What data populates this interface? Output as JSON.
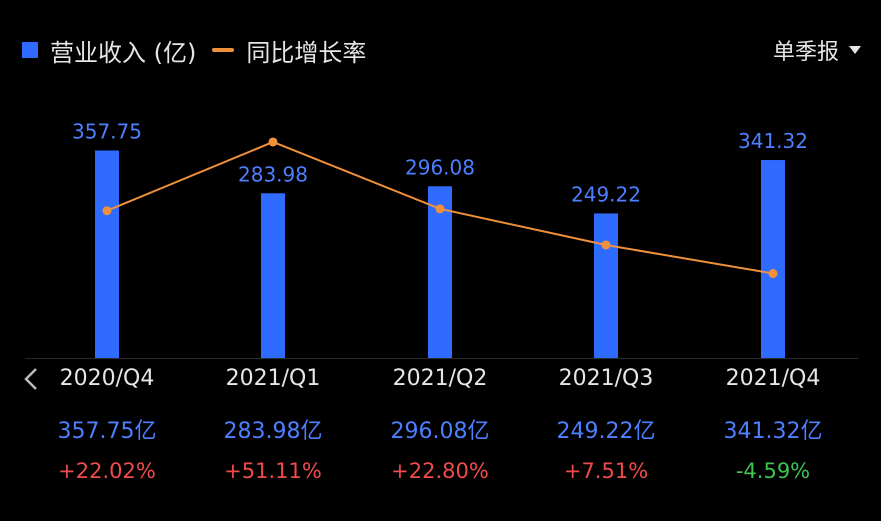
{
  "legend": {
    "bar_label": "营业收入 (亿)",
    "line_label": "同比增长率"
  },
  "period_select": {
    "label": "单季报"
  },
  "colors": {
    "bar": "#2f6bff",
    "line": "#f0903a",
    "positive": "#f04b4b",
    "negative": "#3fc24f",
    "value_text": "#4d7fff"
  },
  "table": {
    "revenue": [
      "357.75亿",
      "283.98亿",
      "296.08亿",
      "249.22亿",
      "341.32亿"
    ],
    "growth": [
      "+22.02%",
      "+51.11%",
      "+22.80%",
      "+7.51%",
      "-4.59%"
    ]
  },
  "chart_data": {
    "type": "bar",
    "categories": [
      "2020/Q4",
      "2021/Q1",
      "2021/Q2",
      "2021/Q3",
      "2021/Q4"
    ],
    "series": [
      {
        "name": "营业收入 (亿)",
        "type": "bar",
        "values": [
          357.75,
          283.98,
          296.08,
          249.22,
          341.32
        ]
      },
      {
        "name": "同比增长率",
        "type": "line",
        "values": [
          22.02,
          51.11,
          22.8,
          7.51,
          -4.59
        ]
      }
    ],
    "bar_labels": [
      "357.75",
      "283.98",
      "296.08",
      "249.22",
      "341.32"
    ],
    "grid": false,
    "legend_position": "top-left"
  }
}
